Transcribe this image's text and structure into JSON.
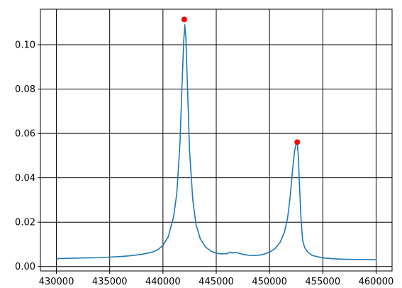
{
  "chart_data": {
    "type": "line",
    "title": "",
    "xlabel": "",
    "ylabel": "",
    "xlim": [
      428500,
      461500
    ],
    "ylim": [
      -0.002,
      0.116
    ],
    "grid": true,
    "x_ticks": [
      430000,
      435000,
      440000,
      445000,
      450000,
      455000,
      460000
    ],
    "x_tick_labels": [
      "430000",
      "435000",
      "440000",
      "445000",
      "450000",
      "455000",
      "460000"
    ],
    "y_ticks": [
      0.0,
      0.02,
      0.04,
      0.06,
      0.08,
      0.1
    ],
    "y_tick_labels": [
      "0.00",
      "0.02",
      "0.04",
      "0.06",
      "0.08",
      "0.10"
    ],
    "colors": {
      "line": "#1f77b4",
      "peak_marker": "#ff0000",
      "grid": "#000000",
      "axes": "#000000"
    },
    "series": [
      {
        "x": [
          430000,
          430200,
          432000,
          434000,
          436000,
          437000,
          438000,
          439000,
          439500,
          440000,
          440500,
          441000,
          441300,
          441600,
          441800,
          441950,
          442050,
          442150,
          442300,
          442500,
          442800,
          443100,
          443500,
          444000,
          444500,
          445000,
          445500,
          446000,
          446200,
          446350,
          446500,
          446700,
          447000,
          447500,
          448000,
          448500,
          449000,
          449500,
          450000,
          450500,
          451000,
          451400,
          451700,
          451950,
          452150,
          452350,
          452500,
          452550,
          452620,
          452700,
          452800,
          452950,
          453100,
          453300,
          453600,
          454000,
          455000,
          456000,
          457000,
          458000,
          459000,
          460000
        ],
        "y": [
          0.0032,
          0.0036,
          0.0038,
          0.004,
          0.0045,
          0.0049,
          0.0055,
          0.0065,
          0.0075,
          0.0095,
          0.0135,
          0.0225,
          0.033,
          0.056,
          0.083,
          0.102,
          0.109,
          0.103,
          0.081,
          0.052,
          0.03,
          0.019,
          0.0125,
          0.0088,
          0.007,
          0.006,
          0.0057,
          0.0058,
          0.0062,
          0.0065,
          0.006,
          0.0064,
          0.0062,
          0.0055,
          0.0051,
          0.005,
          0.0051,
          0.0056,
          0.0065,
          0.008,
          0.011,
          0.0155,
          0.022,
          0.032,
          0.043,
          0.052,
          0.0555,
          0.0558,
          0.0548,
          0.05,
          0.038,
          0.022,
          0.012,
          0.0085,
          0.0065,
          0.005,
          0.0039,
          0.0035,
          0.0033,
          0.0032,
          0.0032,
          0.0031
        ]
      }
    ],
    "peaks": [
      {
        "x": 442000,
        "y": 0.1114
      },
      {
        "x": 452600,
        "y": 0.0561
      }
    ]
  }
}
